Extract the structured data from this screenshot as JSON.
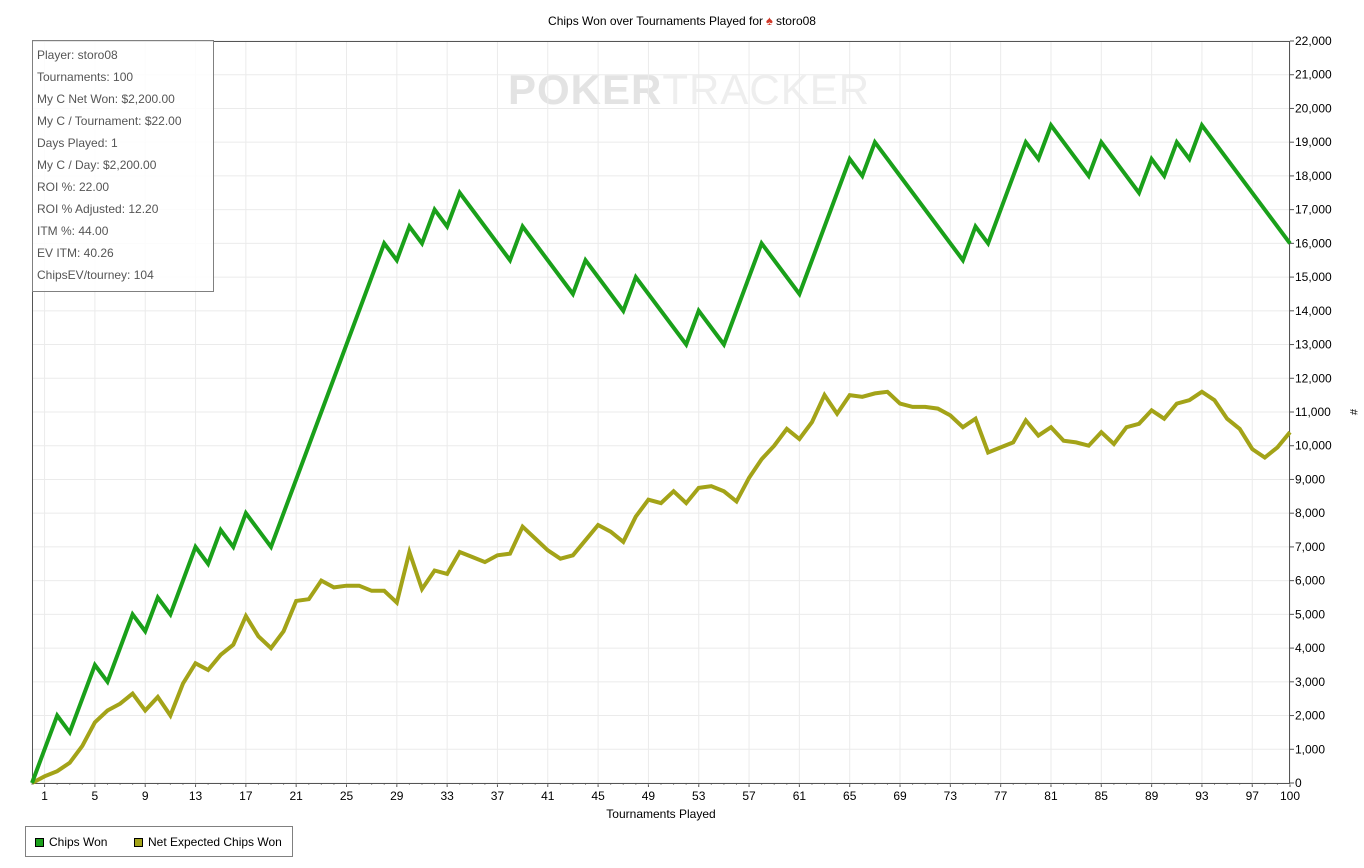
{
  "chart_data": {
    "type": "line",
    "title": "Chips Won over Tournaments Played for",
    "player": "storo08",
    "xlabel": "Tournaments Played",
    "ylabel": "#",
    "xlim": [
      0,
      100
    ],
    "ylim": [
      0,
      22000
    ],
    "x_ticks": [
      1,
      5,
      9,
      13,
      17,
      21,
      25,
      29,
      33,
      37,
      41,
      45,
      49,
      53,
      57,
      61,
      65,
      69,
      73,
      77,
      81,
      85,
      89,
      93,
      97,
      100
    ],
    "y_ticks": [
      "0",
      "1,000",
      "2,000",
      "3,000",
      "4,000",
      "5,000",
      "6,000",
      "7,000",
      "8,000",
      "9,000",
      "10,000",
      "11,000",
      "12,000",
      "13,000",
      "14,000",
      "15,000",
      "16,000",
      "17,000",
      "18,000",
      "19,000",
      "20,000",
      "21,000",
      "22,000"
    ],
    "grid": true,
    "legend_position": "bottom-left",
    "series": [
      {
        "name": "Chips Won",
        "color": "#1aa01a",
        "points": [
          [
            0,
            0
          ],
          [
            2,
            2000
          ],
          [
            3,
            1500
          ],
          [
            5,
            3500
          ],
          [
            6,
            3000
          ],
          [
            8,
            5000
          ],
          [
            9,
            4500
          ],
          [
            10,
            5500
          ],
          [
            11,
            5000
          ],
          [
            13,
            7000
          ],
          [
            14,
            6500
          ],
          [
            15,
            7500
          ],
          [
            16,
            7000
          ],
          [
            17,
            8000
          ],
          [
            19,
            7000
          ],
          [
            28,
            16000
          ],
          [
            29,
            15500
          ],
          [
            30,
            16500
          ],
          [
            31,
            16000
          ],
          [
            32,
            17000
          ],
          [
            33,
            16500
          ],
          [
            34,
            17500
          ],
          [
            38,
            15500
          ],
          [
            39,
            16500
          ],
          [
            43,
            14500
          ],
          [
            44,
            15500
          ],
          [
            47,
            14000
          ],
          [
            48,
            15000
          ],
          [
            52,
            13000
          ],
          [
            53,
            14000
          ],
          [
            55,
            13000
          ],
          [
            58,
            16000
          ],
          [
            61,
            14500
          ],
          [
            65,
            18500
          ],
          [
            66,
            18000
          ],
          [
            67,
            19000
          ],
          [
            74,
            15500
          ],
          [
            75,
            16500
          ],
          [
            76,
            16000
          ],
          [
            79,
            19000
          ],
          [
            80,
            18500
          ],
          [
            81,
            19500
          ],
          [
            84,
            18000
          ],
          [
            85,
            19000
          ],
          [
            88,
            17500
          ],
          [
            89,
            18500
          ],
          [
            90,
            18000
          ],
          [
            91,
            19000
          ],
          [
            92,
            18500
          ],
          [
            93,
            19500
          ],
          [
            100,
            16000
          ]
        ]
      },
      {
        "name": "Net Expected Chips Won",
        "color": "#a3a318",
        "points": [
          [
            0,
            0
          ],
          [
            1,
            200
          ],
          [
            2,
            350
          ],
          [
            3,
            600
          ],
          [
            4,
            1100
          ],
          [
            5,
            1800
          ],
          [
            6,
            2150
          ],
          [
            7,
            2350
          ],
          [
            8,
            2650
          ],
          [
            9,
            2150
          ],
          [
            10,
            2550
          ],
          [
            11,
            2000
          ],
          [
            12,
            2950
          ],
          [
            13,
            3550
          ],
          [
            14,
            3350
          ],
          [
            15,
            3800
          ],
          [
            16,
            4100
          ],
          [
            17,
            4950
          ],
          [
            18,
            4350
          ],
          [
            19,
            4000
          ],
          [
            20,
            4500
          ],
          [
            21,
            5400
          ],
          [
            22,
            5450
          ],
          [
            23,
            6000
          ],
          [
            24,
            5800
          ],
          [
            25,
            5850
          ],
          [
            26,
            5850
          ],
          [
            27,
            5700
          ],
          [
            28,
            5700
          ],
          [
            29,
            5350
          ],
          [
            30,
            6850
          ],
          [
            31,
            5750
          ],
          [
            32,
            6300
          ],
          [
            33,
            6200
          ],
          [
            34,
            6850
          ],
          [
            35,
            6700
          ],
          [
            36,
            6550
          ],
          [
            37,
            6750
          ],
          [
            38,
            6800
          ],
          [
            39,
            7600
          ],
          [
            40,
            7250
          ],
          [
            41,
            6900
          ],
          [
            42,
            6650
          ],
          [
            43,
            6750
          ],
          [
            44,
            7200
          ],
          [
            45,
            7650
          ],
          [
            46,
            7450
          ],
          [
            47,
            7150
          ],
          [
            48,
            7900
          ],
          [
            49,
            8400
          ],
          [
            50,
            8300
          ],
          [
            51,
            8650
          ],
          [
            52,
            8300
          ],
          [
            53,
            8750
          ],
          [
            54,
            8800
          ],
          [
            55,
            8650
          ],
          [
            56,
            8350
          ],
          [
            57,
            9050
          ],
          [
            58,
            9600
          ],
          [
            59,
            10000
          ],
          [
            60,
            10500
          ],
          [
            61,
            10200
          ],
          [
            62,
            10700
          ],
          [
            63,
            11500
          ],
          [
            64,
            10950
          ],
          [
            65,
            11500
          ],
          [
            66,
            11450
          ],
          [
            67,
            11550
          ],
          [
            68,
            11600
          ],
          [
            69,
            11250
          ],
          [
            70,
            11150
          ],
          [
            71,
            11150
          ],
          [
            72,
            11100
          ],
          [
            73,
            10900
          ],
          [
            74,
            10550
          ],
          [
            75,
            10800
          ],
          [
            76,
            9800
          ],
          [
            77,
            9950
          ],
          [
            78,
            10100
          ],
          [
            79,
            10750
          ],
          [
            80,
            10300
          ],
          [
            81,
            10550
          ],
          [
            82,
            10150
          ],
          [
            83,
            10100
          ],
          [
            84,
            10000
          ],
          [
            85,
            10400
          ],
          [
            86,
            10050
          ],
          [
            87,
            10550
          ],
          [
            88,
            10650
          ],
          [
            89,
            11050
          ],
          [
            90,
            10800
          ],
          [
            91,
            11250
          ],
          [
            92,
            11350
          ],
          [
            93,
            11600
          ],
          [
            94,
            11350
          ],
          [
            95,
            10800
          ],
          [
            96,
            10500
          ],
          [
            97,
            9900
          ],
          [
            98,
            9650
          ],
          [
            99,
            9950
          ],
          [
            100,
            10400
          ]
        ]
      }
    ]
  },
  "stats": [
    "Player: storo08",
    "Tournaments: 100",
    "My C Net Won: $2,200.00",
    "My C / Tournament: $22.00",
    "Days Played: 1",
    "My C / Day: $2,200.00",
    "ROI %: 22.00",
    "ROI % Adjusted: 12.20",
    "ITM %: 44.00",
    "EV ITM: 40.26",
    "ChipsEV/tourney: 104"
  ],
  "watermark": {
    "part1": "POKER",
    "part2": "TRACKER"
  },
  "icons": {
    "title_icon": "spade-icon"
  }
}
